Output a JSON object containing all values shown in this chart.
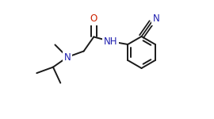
{
  "bg_color": "#ffffff",
  "bond_color": "#1a1a1a",
  "atom_colors": {
    "N": "#2020b0",
    "O": "#cc2200",
    "C": "#1a1a1a"
  },
  "bond_width": 1.4,
  "figsize": [
    2.7,
    1.5
  ],
  "dpi": 100
}
